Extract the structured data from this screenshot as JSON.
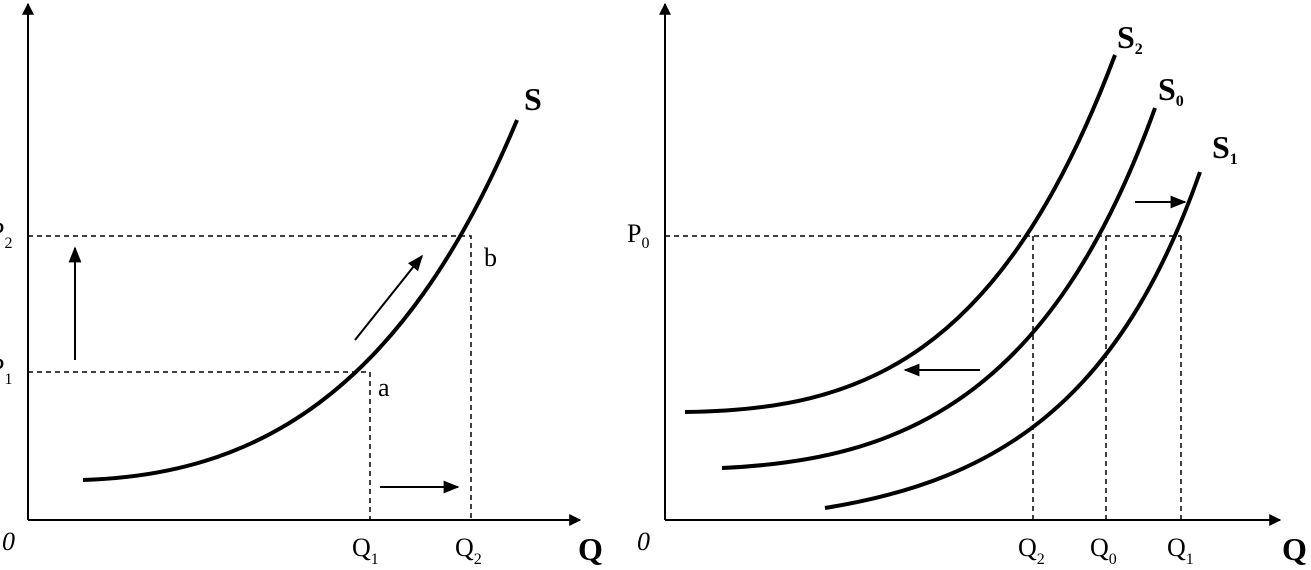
{
  "left": {
    "origin": "0",
    "axis_label": "Q",
    "curve": "S",
    "point_a": "a",
    "point_b": "b",
    "p_labels": [
      {
        "main": "P",
        "sub": "2"
      },
      {
        "main": "P",
        "sub": "1"
      }
    ],
    "q_labels": [
      {
        "main": "Q",
        "sub": "1"
      },
      {
        "main": "Q",
        "sub": "2"
      }
    ]
  },
  "right": {
    "origin": "0",
    "axis_label": "Q",
    "curves": [
      {
        "main": "S",
        "sub": "2"
      },
      {
        "main": "S",
        "sub": "0"
      },
      {
        "main": "S",
        "sub": "1"
      }
    ],
    "p_label": {
      "main": "P",
      "sub": "0"
    },
    "q_labels": [
      {
        "main": "Q",
        "sub": "2"
      },
      {
        "main": "Q",
        "sub": "0"
      },
      {
        "main": "Q",
        "sub": "1"
      }
    ]
  }
}
